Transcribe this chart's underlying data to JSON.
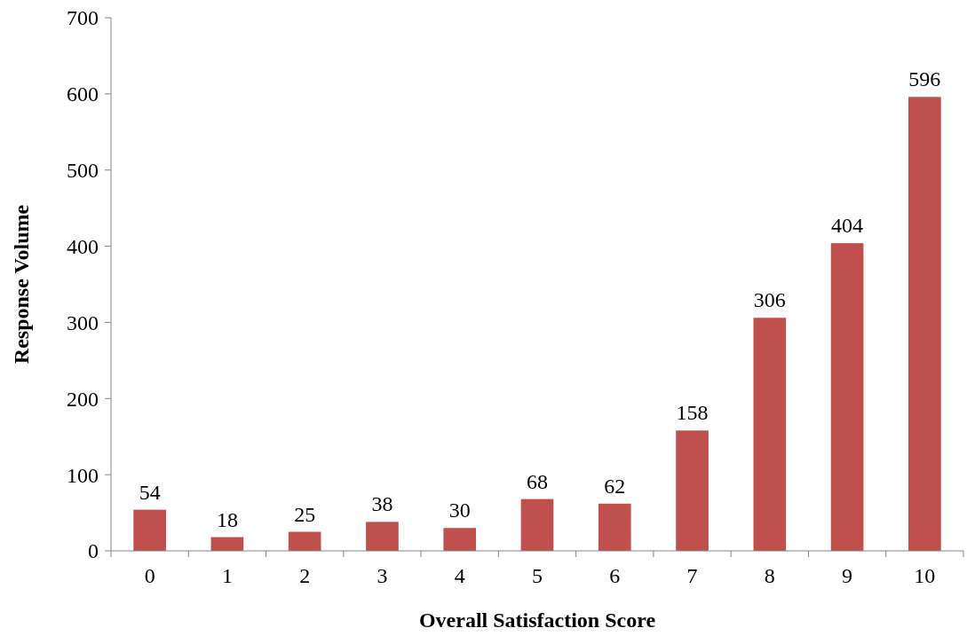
{
  "chart_data": {
    "type": "bar",
    "xlabel": "Overall Satisfaction Score",
    "ylabel": "Response Volume",
    "categories": [
      "0",
      "1",
      "2",
      "3",
      "4",
      "5",
      "6",
      "7",
      "8",
      "9",
      "10"
    ],
    "values": [
      54,
      18,
      25,
      38,
      30,
      68,
      62,
      158,
      306,
      404,
      596
    ],
    "color": "#c0504d",
    "ylim": [
      0,
      700
    ],
    "yticks": [
      0,
      100,
      200,
      300,
      400,
      500,
      600,
      700
    ],
    "data_labels": true
  }
}
